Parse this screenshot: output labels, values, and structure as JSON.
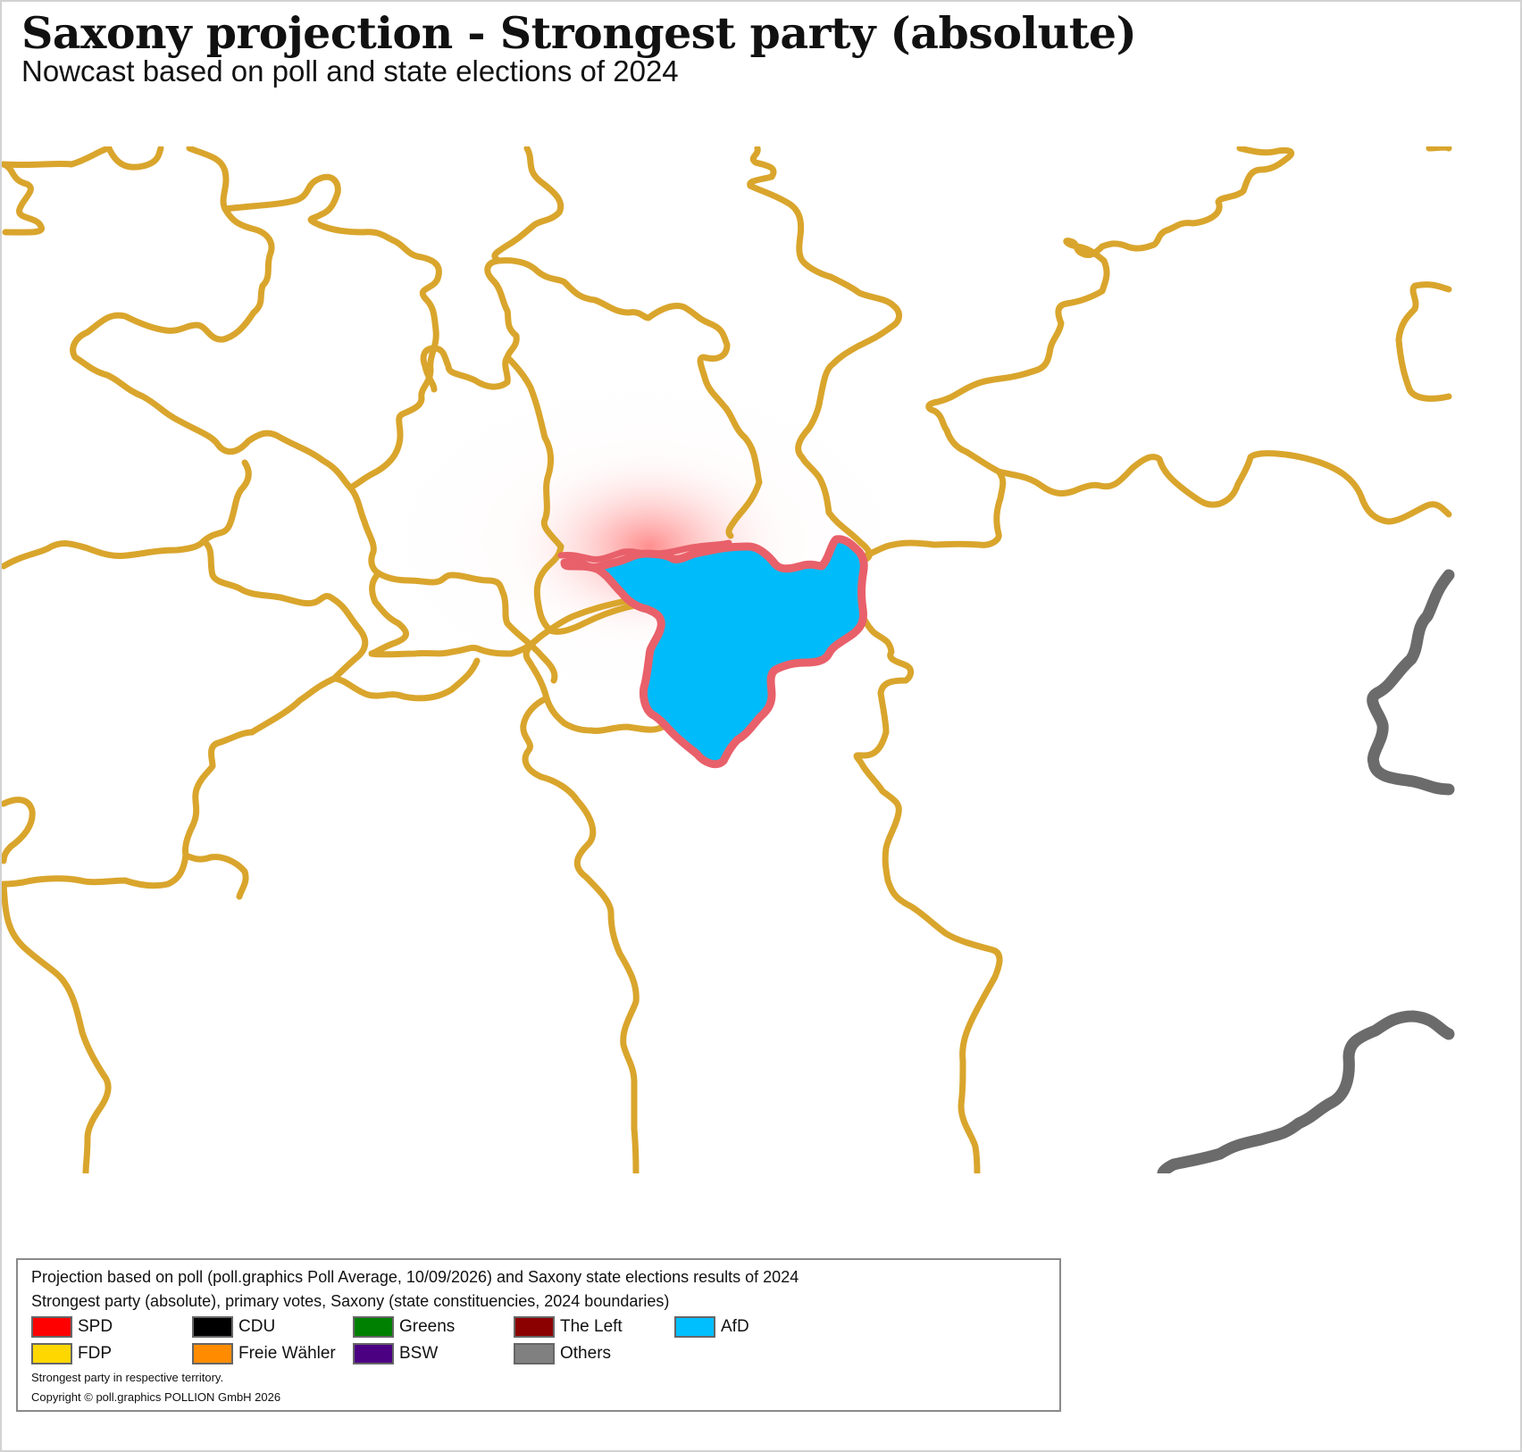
{
  "title": "Saxony projection - Strongest party (absolute)",
  "subtitle": "Nowcast based on poll and state elections of 2024",
  "colors": {
    "boundary": "#d9a52c",
    "outer_border": "#6b6b6b",
    "highlight_outline": "#e8606a",
    "highlight_fill": "#00bbf9",
    "glow": "#ff4a4a"
  },
  "highlighted_constituency": {
    "strongest_party": "AfD"
  },
  "legend": {
    "line1": "Projection based on poll (poll.graphics Poll Average, 10/09/2026) and Saxony state elections results of 2024",
    "line2": "Strongest party (absolute), primary votes, Saxony (state constituencies, 2024 boundaries)",
    "items": [
      {
        "label": "SPD",
        "color": "#ff0000"
      },
      {
        "label": "CDU",
        "color": "#000000"
      },
      {
        "label": "Greens",
        "color": "#008000"
      },
      {
        "label": "The Left",
        "color": "#8b0000"
      },
      {
        "label": "AfD",
        "color": "#00bfff"
      },
      {
        "label": "FDP",
        "color": "#ffd700"
      },
      {
        "label": "Freie Wähler",
        "color": "#ff8c00"
      },
      {
        "label": "BSW",
        "color": "#4b0082"
      },
      {
        "label": "Others",
        "color": "#808080"
      }
    ],
    "note": "Strongest party in respective territory.",
    "copyright": "Copyright © poll.graphics POLLION GmbH 2026"
  }
}
